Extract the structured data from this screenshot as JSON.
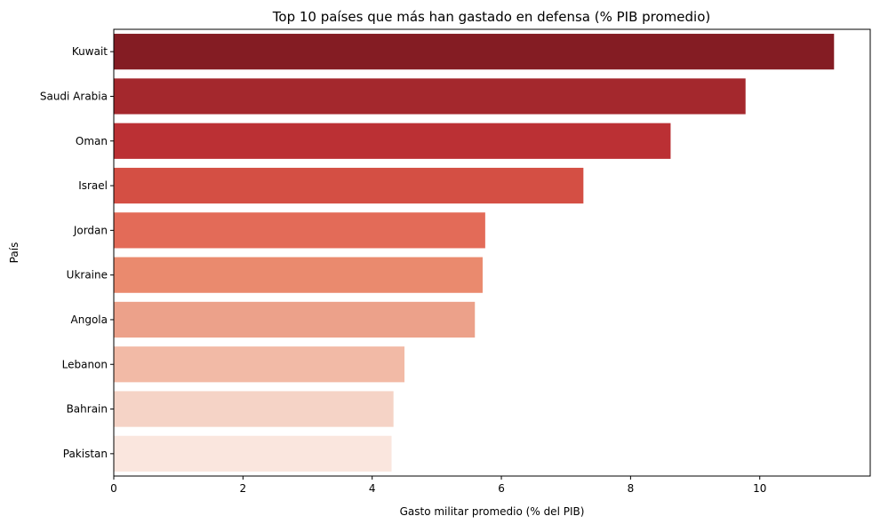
{
  "chart_data": {
    "type": "bar",
    "orientation": "horizontal",
    "title": "Top 10 países que más han gastado en defensa (% PIB promedio)",
    "xlabel": "Gasto militar promedio (% del PIB)",
    "ylabel": "País",
    "categories": [
      "Kuwait",
      "Saudi Arabia",
      "Oman",
      "Israel",
      "Jordan",
      "Ukraine",
      "Angola",
      "Lebanon",
      "Bahrain",
      "Pakistan"
    ],
    "values": [
      11.15,
      9.78,
      8.62,
      7.27,
      5.75,
      5.71,
      5.59,
      4.5,
      4.33,
      4.3
    ],
    "colors": [
      "#841c23",
      "#a4282d",
      "#bb3034",
      "#d44f44",
      "#e36b58",
      "#ea8a6e",
      "#eca18a",
      "#f2baa6",
      "#f5d3c6",
      "#fae6de"
    ],
    "xlim": [
      0,
      11.71
    ],
    "xticks": [
      "0",
      "2",
      "4",
      "6",
      "8",
      "10"
    ],
    "grid": false,
    "legend": "none"
  }
}
